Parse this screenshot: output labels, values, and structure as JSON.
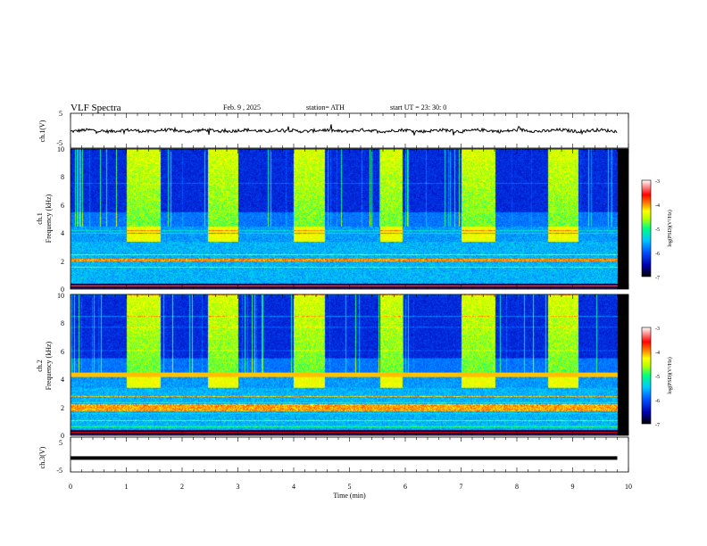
{
  "header": {
    "title": "VLF  Spectra",
    "date": "Feb. 9  , 2025",
    "station": "station= ATH",
    "start": "start  UT  =   23: 30: 0"
  },
  "panels": {
    "ch1_wave": {
      "ylabel": "ch.1(V)",
      "yticks": [
        "5",
        "-5"
      ]
    },
    "ch1_spec": {
      "ylabel": "ch.1",
      "ylabel2": "Frequency  (kHz)",
      "yticks": [
        "10",
        "8",
        "6",
        "4",
        "2",
        "0"
      ]
    },
    "ch2_spec": {
      "ylabel": "ch.2",
      "ylabel2": "Frequency  (kHz)",
      "yticks": [
        "10",
        "8",
        "6",
        "4",
        "2",
        "0"
      ]
    },
    "ch3_wave": {
      "ylabel": "ch.3(V)",
      "yticks": [
        "5",
        "-5"
      ]
    }
  },
  "xaxis": {
    "label": "Time  (min)",
    "ticks": [
      "0",
      "1",
      "2",
      "3",
      "4",
      "5",
      "6",
      "7",
      "8",
      "9",
      "10"
    ]
  },
  "colorbar": {
    "label": "log(PSD)(V²/Hz)",
    "ticks": [
      "-3",
      "-4",
      "-5",
      "-6",
      "-7"
    ]
  },
  "chart_data": {
    "type": "heatmap",
    "x_unit": "min",
    "xlim": [
      0,
      10
    ],
    "ch1_ylim": [
      -5,
      5
    ],
    "ch3_ylim": [
      -5,
      5
    ],
    "spec_ylim": [
      0,
      10
    ],
    "clim": [
      -7,
      -3
    ],
    "data_end_min": 9.8,
    "bright_segments_min": [
      [
        1.0,
        1.6
      ],
      [
        2.45,
        3.0
      ],
      [
        4.0,
        4.55
      ],
      [
        5.55,
        5.95
      ],
      [
        7.0,
        7.6
      ],
      [
        8.55,
        9.1
      ]
    ],
    "ch3_level_v": -1,
    "colormap": [
      "#000000",
      "#0000b0",
      "#0050ff",
      "#00c8ff",
      "#00ff80",
      "#b4ff00",
      "#ffff00",
      "#ff8000",
      "#ff0000",
      "#ffffff"
    ]
  }
}
